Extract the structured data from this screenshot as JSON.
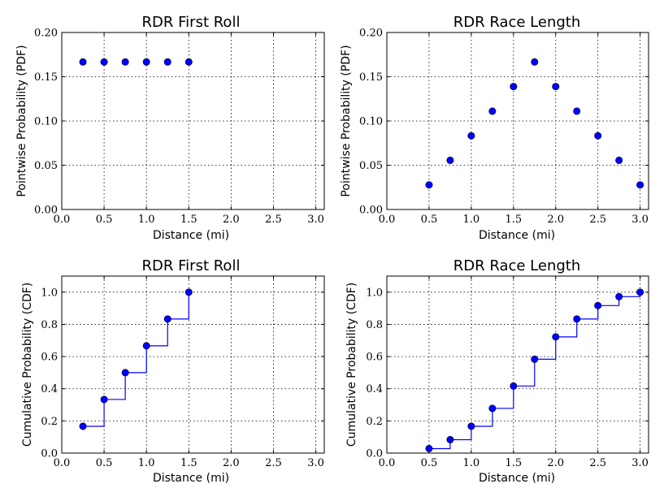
{
  "chart_data": [
    {
      "type": "scatter",
      "title": "RDR First Roll",
      "xlabel": "Distance (mi)",
      "ylabel": "Pointwise Probability (PDF)",
      "xlim": [
        0.0,
        3.1
      ],
      "ylim": [
        0.0,
        0.2
      ],
      "xticks": [
        "0.0",
        "0.5",
        "1.0",
        "1.5",
        "2.0",
        "2.5",
        "3.0"
      ],
      "yticks": [
        "0.00",
        "0.05",
        "0.10",
        "0.15",
        "0.20"
      ],
      "grid": true,
      "color": "#0000ff",
      "x": [
        0.25,
        0.5,
        0.75,
        1.0,
        1.25,
        1.5
      ],
      "y": [
        0.1667,
        0.1667,
        0.1667,
        0.1667,
        0.1667,
        0.1667
      ]
    },
    {
      "type": "scatter",
      "title": "RDR Race Length",
      "xlabel": "Distance (mi)",
      "ylabel": "Pointwise Probability (PDF)",
      "xlim": [
        0.0,
        3.1
      ],
      "ylim": [
        0.0,
        0.2
      ],
      "xticks": [
        "0.0",
        "0.5",
        "1.0",
        "1.5",
        "2.0",
        "2.5",
        "3.0"
      ],
      "yticks": [
        "0.00",
        "0.05",
        "0.10",
        "0.15",
        "0.20"
      ],
      "grid": true,
      "color": "#0000ff",
      "x": [
        0.5,
        0.75,
        1.0,
        1.25,
        1.5,
        1.75,
        2.0,
        2.25,
        2.5,
        2.75,
        3.0
      ],
      "y": [
        0.0278,
        0.0556,
        0.0833,
        0.1111,
        0.1389,
        0.1667,
        0.1389,
        0.1111,
        0.0833,
        0.0556,
        0.0278
      ]
    },
    {
      "type": "line",
      "step": true,
      "title": "RDR First Roll",
      "xlabel": "Distance (mi)",
      "ylabel": "Cumulative Probability (CDF)",
      "xlim": [
        0.0,
        3.1
      ],
      "ylim": [
        0.0,
        1.1
      ],
      "xticks": [
        "0.0",
        "0.5",
        "1.0",
        "1.5",
        "2.0",
        "2.5",
        "3.0"
      ],
      "yticks": [
        "0.0",
        "0.2",
        "0.4",
        "0.6",
        "0.8",
        "1.0"
      ],
      "grid": true,
      "color": "#0000ff",
      "x": [
        0.25,
        0.5,
        0.75,
        1.0,
        1.25,
        1.5
      ],
      "y": [
        0.1667,
        0.3333,
        0.5,
        0.6667,
        0.8333,
        1.0
      ]
    },
    {
      "type": "line",
      "step": true,
      "title": "RDR Race Length",
      "xlabel": "Distance (mi)",
      "ylabel": "Cumulative Probability (CDF)",
      "xlim": [
        0.0,
        3.1
      ],
      "ylim": [
        0.0,
        1.1
      ],
      "xticks": [
        "0.0",
        "0.5",
        "1.0",
        "1.5",
        "2.0",
        "2.5",
        "3.0"
      ],
      "yticks": [
        "0.0",
        "0.2",
        "0.4",
        "0.6",
        "0.8",
        "1.0"
      ],
      "grid": true,
      "color": "#0000ff",
      "x": [
        0.5,
        0.75,
        1.0,
        1.25,
        1.5,
        1.75,
        2.0,
        2.25,
        2.5,
        2.75,
        3.0
      ],
      "y": [
        0.0278,
        0.0833,
        0.1667,
        0.2778,
        0.4167,
        0.5833,
        0.7222,
        0.8333,
        0.9167,
        0.9722,
        1.0
      ]
    }
  ]
}
